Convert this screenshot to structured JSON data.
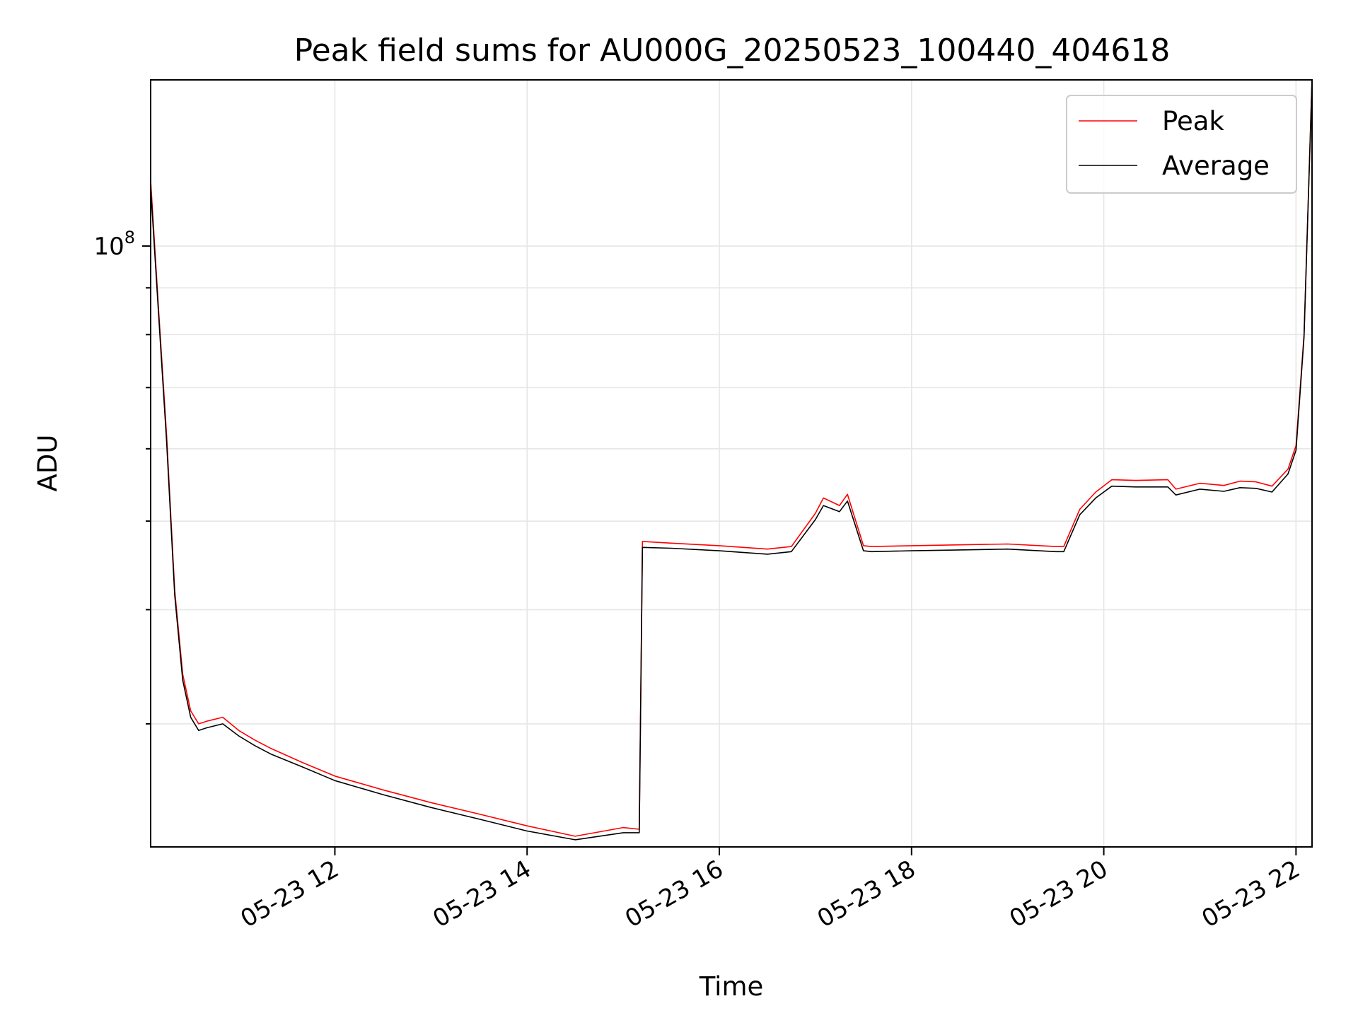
{
  "chart_data": {
    "type": "line",
    "title": "Peak field sums for AU000G_20250523_100440_404618",
    "xlabel": "Time",
    "ylabel": "ADU",
    "y_scale": "log",
    "ylim": [
      22000000,
      152000000
    ],
    "xlim": [
      "2025-05-23 10:05",
      "2025-05-23 22:10"
    ],
    "x_ticks": [
      {
        "time": "2025-05-23 12:00",
        "label": "05-23 12"
      },
      {
        "time": "2025-05-23 14:00",
        "label": "05-23 14"
      },
      {
        "time": "2025-05-23 16:00",
        "label": "05-23 16"
      },
      {
        "time": "2025-05-23 18:00",
        "label": "05-23 18"
      },
      {
        "time": "2025-05-23 20:00",
        "label": "05-23 20"
      },
      {
        "time": "2025-05-23 22:00",
        "label": "05-23 22"
      }
    ],
    "y_major_ticks": [
      {
        "value": 100000000,
        "base": "10",
        "exp": "8"
      }
    ],
    "y_minor_ticks": [
      30000000,
      40000000,
      50000000,
      60000000,
      70000000,
      80000000,
      90000000
    ],
    "grid": true,
    "legend_position": "upper-right",
    "series": [
      {
        "name": "Peak",
        "color": "#ff0000",
        "x": [
          "2025-05-23 10:05",
          "2025-05-23 10:10",
          "2025-05-23 10:15",
          "2025-05-23 10:20",
          "2025-05-23 10:25",
          "2025-05-23 10:30",
          "2025-05-23 10:35",
          "2025-05-23 10:40",
          "2025-05-23 10:50",
          "2025-05-23 11:00",
          "2025-05-23 11:10",
          "2025-05-23 11:20",
          "2025-05-23 11:40",
          "2025-05-23 12:00",
          "2025-05-23 12:30",
          "2025-05-23 13:00",
          "2025-05-23 13:30",
          "2025-05-23 14:00",
          "2025-05-23 14:30",
          "2025-05-23 15:00",
          "2025-05-23 15:10",
          "2025-05-23 15:12",
          "2025-05-23 15:30",
          "2025-05-23 16:00",
          "2025-05-23 16:30",
          "2025-05-23 16:45",
          "2025-05-23 17:00",
          "2025-05-23 17:05",
          "2025-05-23 17:15",
          "2025-05-23 17:20",
          "2025-05-23 17:30",
          "2025-05-23 17:35",
          "2025-05-23 18:00",
          "2025-05-23 18:30",
          "2025-05-23 19:00",
          "2025-05-23 19:30",
          "2025-05-23 19:35",
          "2025-05-23 19:45",
          "2025-05-23 19:55",
          "2025-05-23 20:05",
          "2025-05-23 20:20",
          "2025-05-23 20:40",
          "2025-05-23 20:45",
          "2025-05-23 21:00",
          "2025-05-23 21:15",
          "2025-05-23 21:25",
          "2025-05-23 21:35",
          "2025-05-23 21:45",
          "2025-05-23 21:55",
          "2025-05-23 22:00",
          "2025-05-23 22:05",
          "2025-05-23 22:10"
        ],
        "values": [
          118000000,
          85000000,
          62000000,
          42000000,
          34000000,
          31000000,
          30000000,
          30200000,
          30500000,
          29500000,
          28800000,
          28200000,
          27200000,
          26300000,
          25400000,
          24600000,
          23900000,
          23200000,
          22600000,
          23100000,
          23000000,
          47500000,
          47300000,
          47000000,
          46600000,
          46900000,
          51000000,
          53000000,
          52000000,
          53500000,
          47000000,
          46900000,
          47000000,
          47100000,
          47200000,
          46900000,
          46900000,
          51500000,
          53800000,
          55500000,
          55400000,
          55500000,
          54200000,
          55000000,
          54700000,
          55300000,
          55200000,
          54600000,
          57000000,
          60500000,
          80000000,
          152000000
        ]
      },
      {
        "name": "Average",
        "color": "#000000",
        "x": [
          "2025-05-23 10:05",
          "2025-05-23 10:10",
          "2025-05-23 10:15",
          "2025-05-23 10:20",
          "2025-05-23 10:25",
          "2025-05-23 10:30",
          "2025-05-23 10:35",
          "2025-05-23 10:40",
          "2025-05-23 10:50",
          "2025-05-23 11:00",
          "2025-05-23 11:10",
          "2025-05-23 11:20",
          "2025-05-23 11:40",
          "2025-05-23 12:00",
          "2025-05-23 12:30",
          "2025-05-23 13:00",
          "2025-05-23 13:30",
          "2025-05-23 14:00",
          "2025-05-23 14:30",
          "2025-05-23 15:00",
          "2025-05-23 15:10",
          "2025-05-23 15:12",
          "2025-05-23 15:30",
          "2025-05-23 16:00",
          "2025-05-23 16:30",
          "2025-05-23 16:45",
          "2025-05-23 17:00",
          "2025-05-23 17:05",
          "2025-05-23 17:15",
          "2025-05-23 17:20",
          "2025-05-23 17:30",
          "2025-05-23 17:35",
          "2025-05-23 18:00",
          "2025-05-23 18:30",
          "2025-05-23 19:00",
          "2025-05-23 19:30",
          "2025-05-23 19:35",
          "2025-05-23 19:45",
          "2025-05-23 19:55",
          "2025-05-23 20:05",
          "2025-05-23 20:20",
          "2025-05-23 20:40",
          "2025-05-23 20:45",
          "2025-05-23 21:00",
          "2025-05-23 21:15",
          "2025-05-23 21:25",
          "2025-05-23 21:35",
          "2025-05-23 21:45",
          "2025-05-23 21:55",
          "2025-05-23 22:00",
          "2025-05-23 22:05",
          "2025-05-23 22:10"
        ],
        "values": [
          116000000,
          84000000,
          61000000,
          41500000,
          33500000,
          30500000,
          29500000,
          29700000,
          30000000,
          29100000,
          28400000,
          27800000,
          26900000,
          26000000,
          25100000,
          24300000,
          23600000,
          22900000,
          22400000,
          22800000,
          22800000,
          46800000,
          46700000,
          46400000,
          46000000,
          46300000,
          50200000,
          52000000,
          51200000,
          52600000,
          46400000,
          46300000,
          46400000,
          46500000,
          46600000,
          46300000,
          46300000,
          50800000,
          53000000,
          54600000,
          54500000,
          54500000,
          53400000,
          54200000,
          53900000,
          54400000,
          54300000,
          53800000,
          56300000,
          59800000,
          79500000,
          152000000
        ]
      }
    ]
  }
}
